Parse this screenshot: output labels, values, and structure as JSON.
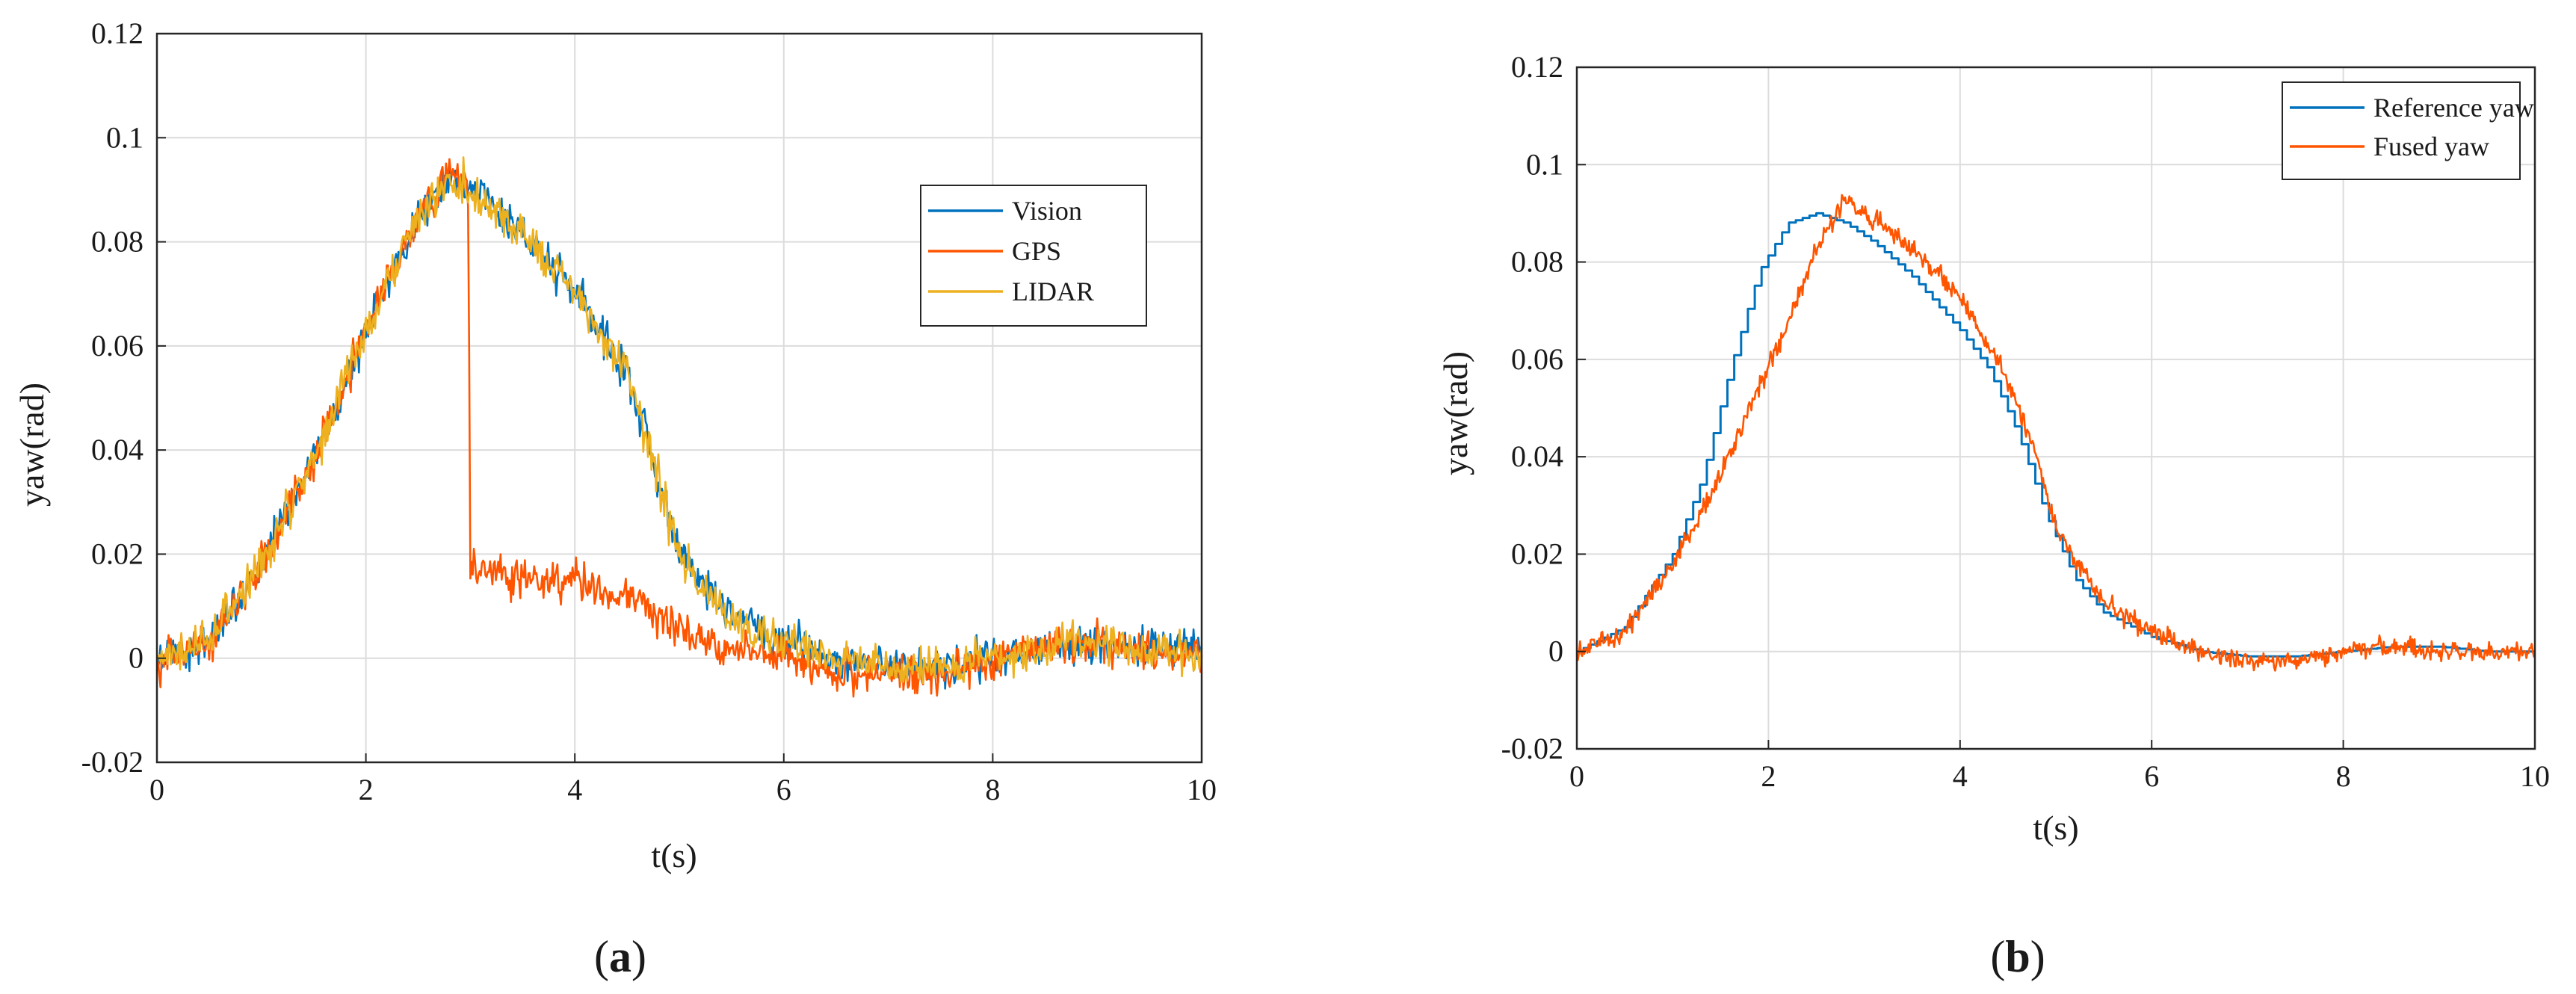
{
  "chart_data": [
    {
      "type": "line",
      "panel_label": "a",
      "title": "",
      "xlabel": "t(s)",
      "ylabel": "yaw(rad)",
      "xlim": [
        0,
        10
      ],
      "ylim": [
        -0.02,
        0.12
      ],
      "xticks": [
        "0",
        "2",
        "4",
        "6",
        "8",
        "10"
      ],
      "yticks": [
        "-0.02",
        "0",
        "0.02",
        "0.04",
        "0.06",
        "0.08",
        "0.1",
        "0.12"
      ],
      "grid": true,
      "legend_position": "right-middle",
      "series": [
        {
          "name": "Vision",
          "color": "#0072BD",
          "x": [
            0,
            0.5,
            1,
            1.5,
            2,
            2.5,
            2.8,
            3,
            3.5,
            4,
            4.5,
            5,
            5.5,
            6,
            6.5,
            7,
            7.5,
            8,
            8.5,
            9,
            9.5,
            10
          ],
          "y": [
            0.0,
            0.003,
            0.018,
            0.038,
            0.063,
            0.085,
            0.093,
            0.09,
            0.082,
            0.07,
            0.055,
            0.02,
            0.008,
            0.003,
            0.0,
            -0.002,
            -0.002,
            0.0,
            0.002,
            0.003,
            0.002,
            0.001
          ]
        },
        {
          "name": "GPS",
          "color": "#FF5500",
          "x": [
            0,
            0.5,
            1,
            1.5,
            2,
            2.5,
            2.8,
            2.98,
            3.0,
            3.5,
            4,
            4.5,
            5,
            5.5,
            6,
            6.5,
            7,
            7.5,
            8,
            8.5,
            9,
            9.5,
            10
          ],
          "y": [
            0.0,
            0.003,
            0.018,
            0.038,
            0.063,
            0.085,
            0.094,
            0.09,
            0.018,
            0.015,
            0.015,
            0.012,
            0.005,
            0.002,
            0.0,
            -0.003,
            -0.003,
            -0.003,
            0.0,
            0.002,
            0.003,
            0.001,
            0.001
          ]
        },
        {
          "name": "LIDAR",
          "color": "#EDB120",
          "x": [
            0,
            0.5,
            1,
            1.5,
            2,
            2.5,
            2.8,
            3,
            3.5,
            4,
            4.5,
            5,
            5.5,
            6,
            6.5,
            7,
            7.5,
            8,
            8.5,
            9,
            9.5,
            10
          ],
          "y": [
            0.0,
            0.003,
            0.018,
            0.038,
            0.063,
            0.085,
            0.093,
            0.09,
            0.082,
            0.07,
            0.055,
            0.02,
            0.008,
            0.003,
            0.0,
            -0.002,
            -0.002,
            0.0,
            0.002,
            0.003,
            0.002,
            0.001
          ]
        }
      ]
    },
    {
      "type": "line",
      "panel_label": "b",
      "title": "",
      "xlabel": "t(s)",
      "ylabel": "yaw(rad)",
      "xlim": [
        0,
        10
      ],
      "ylim": [
        -0.02,
        0.12
      ],
      "xticks": [
        "0",
        "2",
        "4",
        "6",
        "8",
        "10"
      ],
      "yticks": [
        "-0.02",
        "0",
        "0.02",
        "0.04",
        "0.06",
        "0.08",
        "0.1",
        "0.12"
      ],
      "grid": true,
      "legend_position": "top-right",
      "series": [
        {
          "name": "Reference yaw",
          "color": "#0072BD",
          "x": [
            0,
            0.5,
            1,
            1.3,
            1.6,
            1.9,
            2.2,
            2.5,
            2.8,
            3.1,
            3.5,
            4,
            4.3,
            4.6,
            4.9,
            5.2,
            5.5,
            6,
            6.5,
            7,
            7.5,
            8,
            8.5,
            9,
            9.5,
            10
          ],
          "y": [
            0.0,
            0.005,
            0.02,
            0.035,
            0.058,
            0.078,
            0.088,
            0.09,
            0.088,
            0.084,
            0.077,
            0.066,
            0.058,
            0.045,
            0.028,
            0.015,
            0.008,
            0.003,
            0.0,
            -0.001,
            -0.001,
            0.0,
            0.001,
            0.001,
            0.0,
            0.0
          ]
        },
        {
          "name": "Fused yaw",
          "color": "#FF5500",
          "x": [
            0,
            0.5,
            1,
            1.5,
            2,
            2.5,
            2.8,
            3,
            3.5,
            4,
            4.5,
            4.8,
            5,
            5.5,
            6,
            6.5,
            7,
            7.5,
            8,
            8.5,
            9,
            9.5,
            10
          ],
          "y": [
            0.0,
            0.004,
            0.018,
            0.036,
            0.058,
            0.082,
            0.093,
            0.09,
            0.083,
            0.073,
            0.056,
            0.04,
            0.025,
            0.01,
            0.004,
            0.0,
            -0.002,
            -0.002,
            0.0,
            0.001,
            0.0,
            0.0,
            0.0
          ]
        }
      ]
    }
  ]
}
